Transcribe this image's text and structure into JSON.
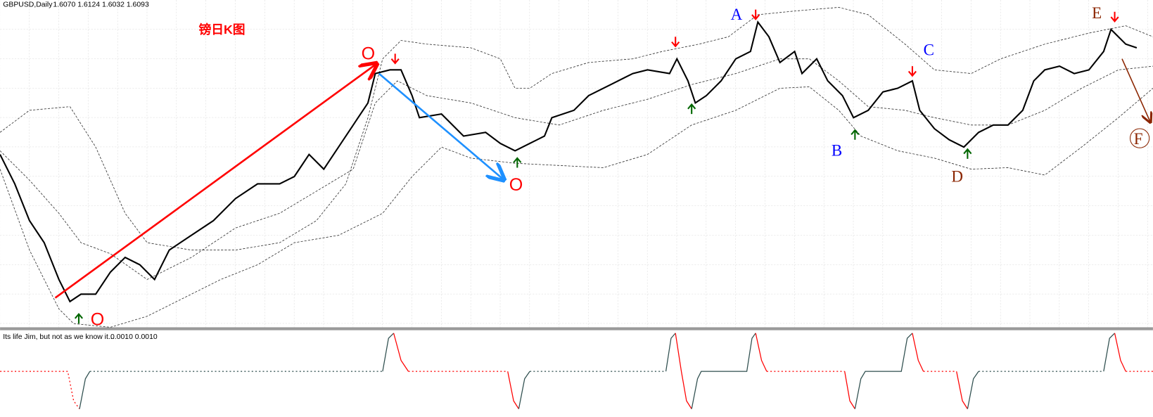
{
  "header": {
    "symbol": "GBPUSD,Daily",
    "quote": "1.6070 1.6124 1.6032 1.6093"
  },
  "annotations": {
    "title": "镑日K图",
    "a": "A",
    "b": "B",
    "c": "C",
    "d": "D",
    "e": "E",
    "f": "F",
    "o1": "O",
    "o2": "O",
    "o3": "O"
  },
  "indicator": {
    "label": "Its life Jim, but not as we know it...",
    "values": "0.0010 0.0010"
  }
}
